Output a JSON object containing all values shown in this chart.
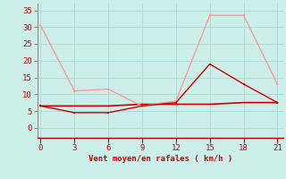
{
  "x": [
    0,
    3,
    6,
    9,
    12,
    15,
    18,
    21
  ],
  "line1_y": [
    30.5,
    11.0,
    11.5,
    6.5,
    8.0,
    33.5,
    33.5,
    13.0
  ],
  "line2_y": [
    6.5,
    4.5,
    4.5,
    6.5,
    7.5,
    19.0,
    13.0,
    7.5
  ],
  "line3_y": [
    6.5,
    6.5,
    6.5,
    7.0,
    7.0,
    7.0,
    7.5,
    7.5
  ],
  "line1_color": "#ff9999",
  "line2_color": "#cc0000",
  "line3_color": "#cc0000",
  "bg_color": "#cceee8",
  "grid_color": "#aadddd",
  "xlabel": "Vent moyen/en rafales ( km/h )",
  "xlabel_color": "#cc0000",
  "tick_color": "#cc0000",
  "spine_color": "#888888",
  "yticks": [
    0,
    5,
    10,
    15,
    20,
    25,
    30,
    35
  ],
  "xticks": [
    0,
    3,
    6,
    9,
    12,
    15,
    18,
    21
  ],
  "ylim": [
    -3,
    37
  ],
  "xlim": [
    -0.3,
    21.5
  ]
}
